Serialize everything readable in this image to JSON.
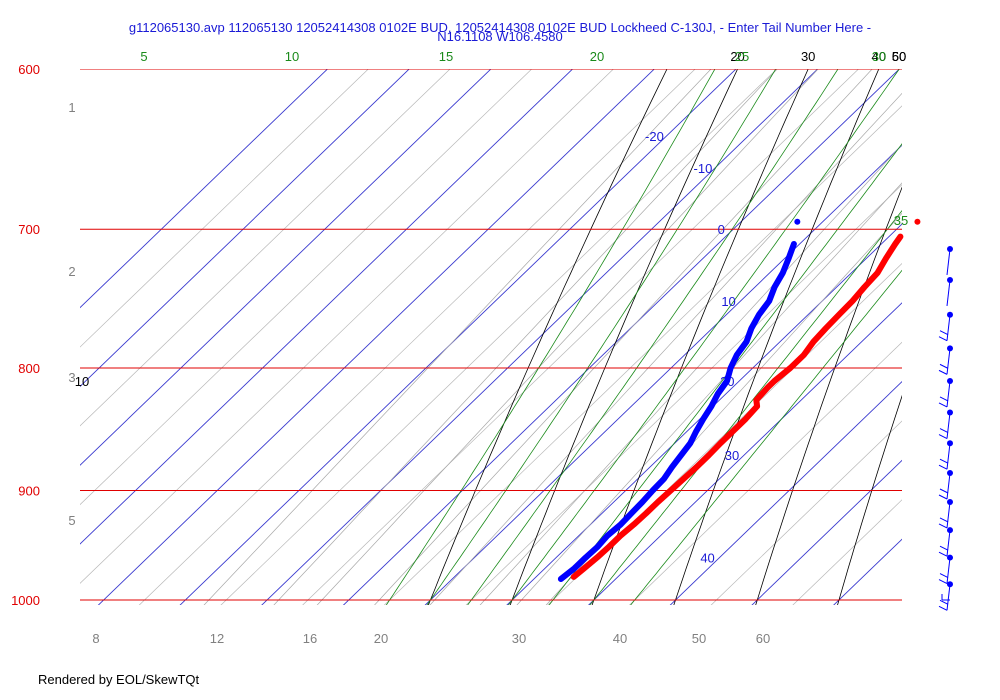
{
  "title": {
    "line1": "g112065130.avp 112065130 12052414308 0102E BUD, 12052414308 0102E BUD Lockheed C-130J, - Enter Tail Number Here -",
    "line2": "N16.1108 W106.4580"
  },
  "footer": "Rendered by EOL/SkewTQt",
  "colors": {
    "isobar": "#e00000",
    "isotherm_labels": "#1a1ad6",
    "dry_adiabat": "#000000",
    "moist_adiabat": "#1a8a1a",
    "mixing_ratio_label": "#808080",
    "temperature": "#ff0000",
    "dewpoint": "#0000ff",
    "wind": "#0000ff"
  },
  "chart_data": {
    "type": "line",
    "subtype": "skew-t log-p",
    "pressure_range_hpa": [
      600,
      1000
    ],
    "isobar_labels": [
      "600",
      "700",
      "800",
      "900",
      "1000"
    ],
    "isotherm_labels": [
      "-20",
      "-10",
      "0",
      "10",
      "20",
      "30",
      "40"
    ],
    "dry_adiabat_labels": [
      "20",
      "30",
      "40",
      "50",
      "60",
      "10"
    ],
    "moist_adiabat_labels": [
      "5",
      "10",
      "15",
      "20",
      "25",
      "30",
      "35"
    ],
    "mixing_ratio_labels": [
      "1",
      "2",
      "3",
      "5"
    ],
    "mixing_ratio_bottom_labels": [
      "8",
      "12",
      "16",
      "20",
      "30",
      "40",
      "50",
      "60"
    ],
    "series": [
      {
        "name": "Temperature",
        "pressure": [
          978,
          970,
          960,
          950,
          940,
          930,
          920,
          910,
          900,
          890,
          880,
          870,
          860,
          850,
          840,
          830,
          825,
          815,
          810,
          800,
          790,
          780,
          770,
          760,
          750,
          740,
          730,
          720,
          710,
          705
        ],
        "temperature": [
          24.6,
          24.8,
          25.0,
          25.1,
          25.1,
          25.3,
          25.4,
          25.4,
          25.5,
          25.6,
          25.7,
          25.7,
          25.6,
          25.6,
          25.6,
          25.4,
          24.5,
          24.3,
          24.3,
          24.6,
          24.6,
          24.1,
          23.9,
          23.8,
          23.7,
          23.4,
          23.2,
          22.4,
          21.7,
          21.4
        ]
      },
      {
        "name": "Dewpoint",
        "pressure": [
          980,
          970,
          960,
          950,
          940,
          930,
          920,
          910,
          900,
          890,
          880,
          870,
          860,
          850,
          840,
          830,
          820,
          810,
          800,
          790,
          780,
          770,
          760,
          750,
          740,
          730,
          720,
          710
        ],
        "temperature": [
          23.3,
          23.6,
          23.6,
          23.7,
          23.5,
          23.7,
          23.6,
          23.5,
          23.3,
          23.2,
          22.7,
          22.3,
          21.9,
          21.1,
          20.4,
          19.8,
          19.0,
          18.5,
          17.3,
          16.4,
          15.9,
          14.8,
          14.0,
          13.5,
          12.4,
          11.6,
          10.5,
          9.3
        ]
      }
    ],
    "surface_points": [
      {
        "name": "Dewpoint",
        "pressure": 695,
        "temperature": 6.9
      },
      {
        "name": "Temperature",
        "pressure": 695,
        "temperature": 21.6
      }
    ],
    "wind_barbs_pressure": [
      710,
      735,
      760,
      785,
      810,
      835,
      860,
      885,
      910,
      935,
      960,
      985,
      1000
    ]
  }
}
